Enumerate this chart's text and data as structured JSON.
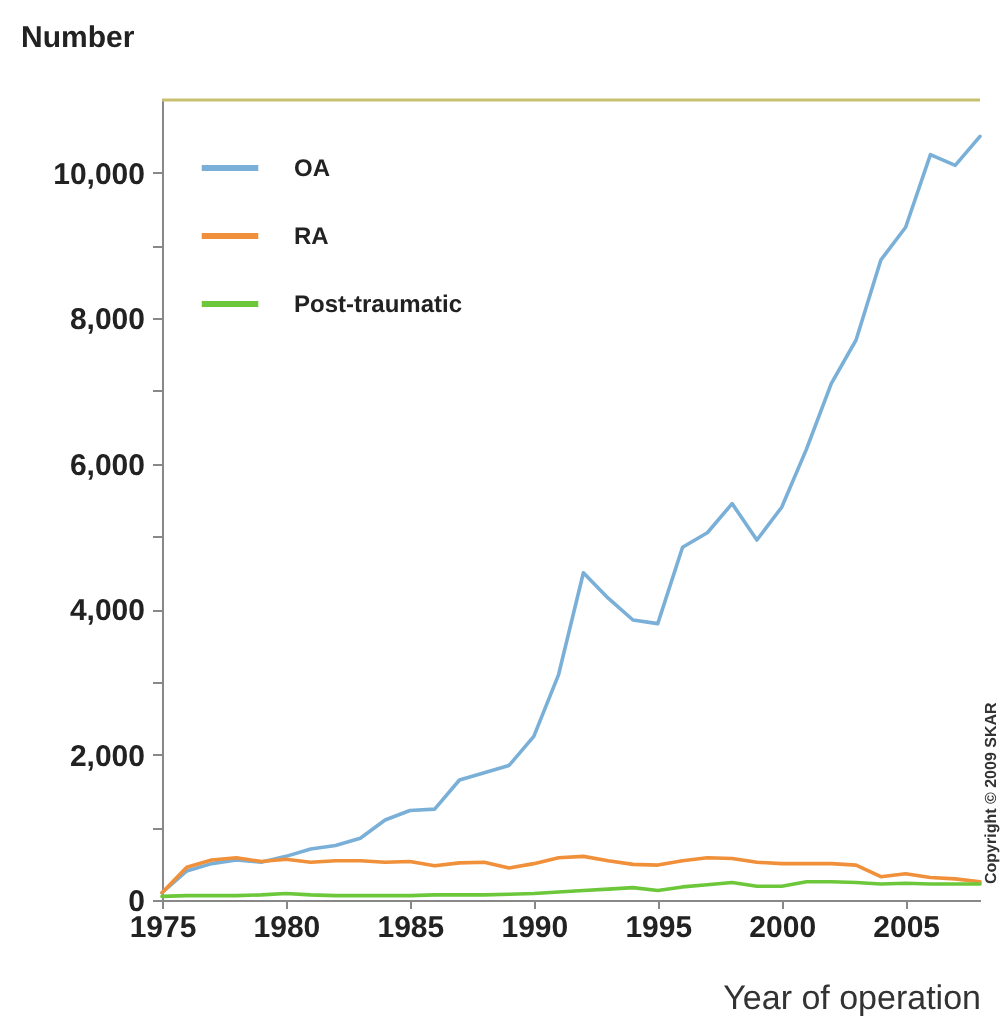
{
  "chart_data": {
    "type": "line",
    "ylabel": "Number",
    "xlabel": "Year of operation",
    "x": [
      1975,
      1976,
      1977,
      1978,
      1979,
      1980,
      1981,
      1982,
      1983,
      1984,
      1985,
      1986,
      1987,
      1988,
      1989,
      1990,
      1991,
      1992,
      1993,
      1994,
      1995,
      1996,
      1997,
      1998,
      1999,
      2000,
      2001,
      2002,
      2003,
      2004,
      2005,
      2006,
      2007,
      2008
    ],
    "series": [
      {
        "name": "OA",
        "color": "#7ab0d8",
        "values": [
          100,
          400,
          500,
          550,
          520,
          600,
          700,
          750,
          850,
          1100,
          1230,
          1250,
          1650,
          1750,
          1850,
          2250,
          3100,
          4500,
          4150,
          3850,
          3800,
          4850,
          5050,
          5450,
          4950,
          5400,
          6200,
          7100,
          7700,
          8800,
          9250,
          10250,
          10100,
          10500
        ]
      },
      {
        "name": "RA",
        "color": "#f0903a",
        "values": [
          100,
          450,
          550,
          580,
          530,
          560,
          520,
          540,
          540,
          520,
          530,
          470,
          510,
          520,
          440,
          500,
          580,
          600,
          540,
          490,
          480,
          540,
          580,
          570,
          520,
          500,
          500,
          500,
          480,
          320,
          360,
          310,
          290,
          250
        ]
      },
      {
        "name": "Post-traumatic",
        "color": "#6cc83a",
        "values": [
          50,
          60,
          60,
          60,
          70,
          90,
          70,
          60,
          60,
          60,
          60,
          70,
          70,
          70,
          80,
          90,
          110,
          130,
          150,
          170,
          130,
          180,
          210,
          240,
          190,
          190,
          250,
          250,
          240,
          220,
          230,
          220,
          220,
          220
        ]
      }
    ],
    "xlim": [
      1975,
      2008
    ],
    "xticks": [
      1975,
      1980,
      1985,
      1990,
      1995,
      2000,
      2005
    ],
    "ylim": [
      0,
      11000
    ],
    "yticks": [
      0,
      {
        "value": 1000,
        "label": null
      },
      {
        "value": 2000,
        "label": "2,000"
      },
      {
        "value": 3000,
        "label": null
      },
      {
        "value": 4000,
        "label": "4,000"
      },
      {
        "value": 5000,
        "label": null
      },
      {
        "value": 6000,
        "label": "6,000"
      },
      {
        "value": 7000,
        "label": null
      },
      {
        "value": 8000,
        "label": "8,000"
      },
      {
        "value": 9000,
        "label": null
      },
      {
        "value": 10000,
        "label": "10,000"
      }
    ],
    "legend": "top left",
    "grid": false,
    "marker": "none",
    "line_style": "solid",
    "annotations": [
      "Copyright © 2009 SKAR"
    ]
  }
}
